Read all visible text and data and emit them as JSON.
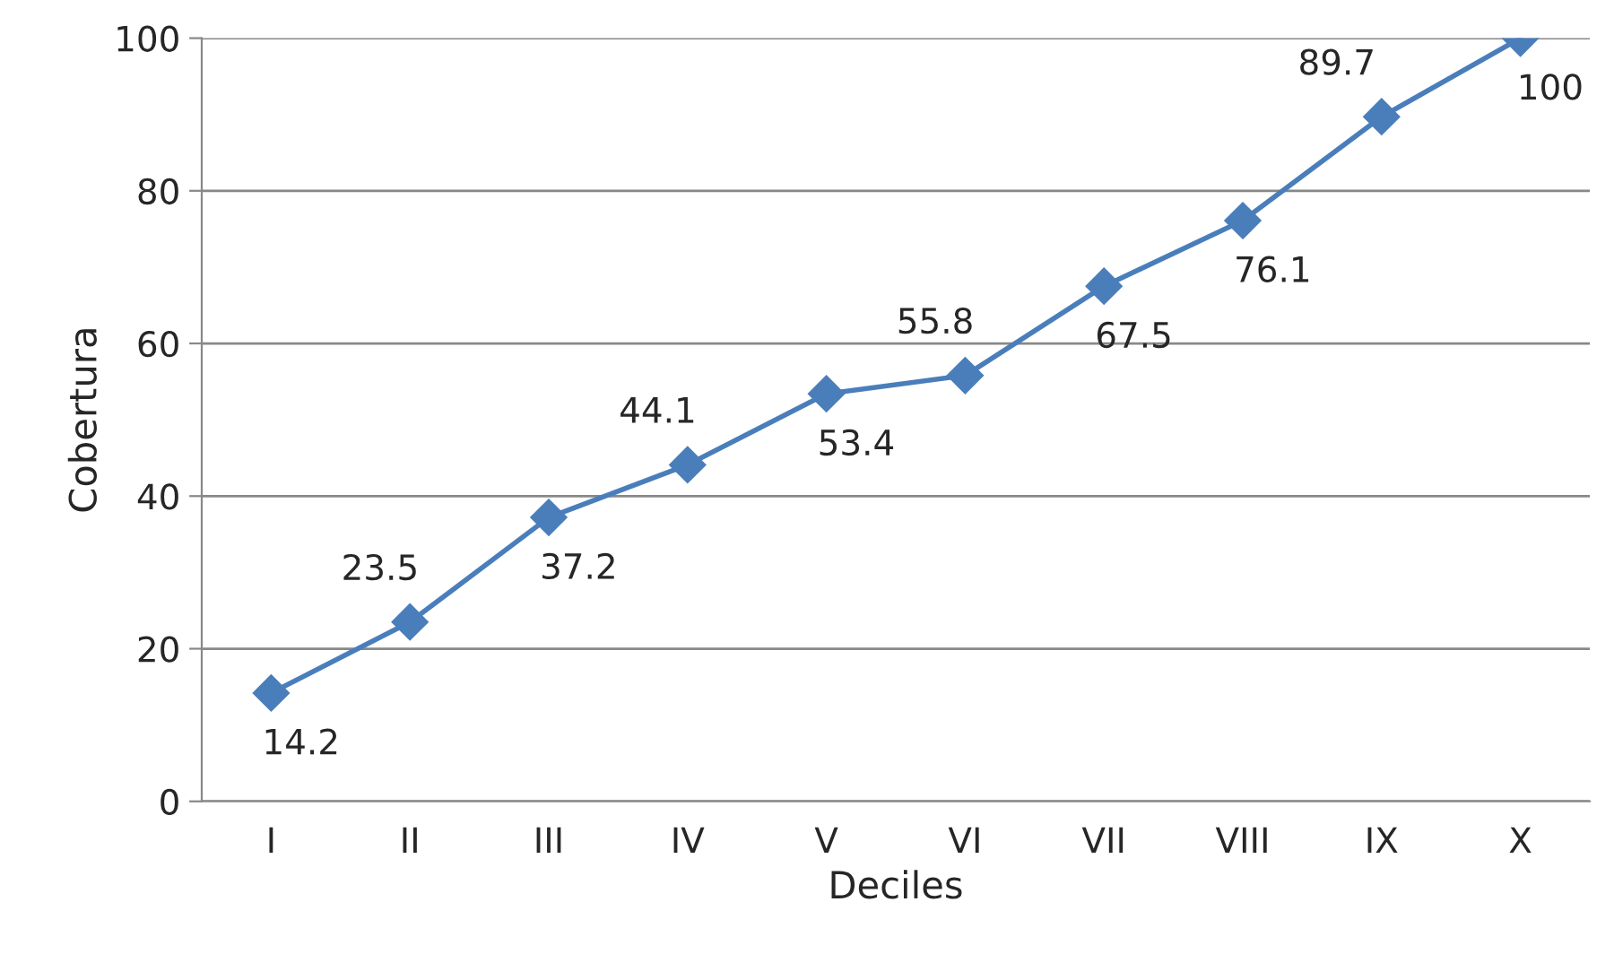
{
  "chart_data": {
    "type": "line",
    "xlabel": "Deciles",
    "ylabel": "Cobertura",
    "categories": [
      "I",
      "II",
      "III",
      "IV",
      "V",
      "VI",
      "VII",
      "VIII",
      "IX",
      "X"
    ],
    "series": [
      {
        "color": "#4a7ebb",
        "values": [
          14.2,
          23.5,
          37.2,
          44.1,
          53.4,
          55.8,
          67.5,
          76.1,
          89.7,
          100
        ]
      }
    ],
    "ylim": [
      0,
      100
    ],
    "yticks": [
      0,
      20,
      40,
      60,
      80,
      100
    ],
    "grid": "y",
    "marker": "diamond",
    "line_style": "solid",
    "data_labels": true
  }
}
